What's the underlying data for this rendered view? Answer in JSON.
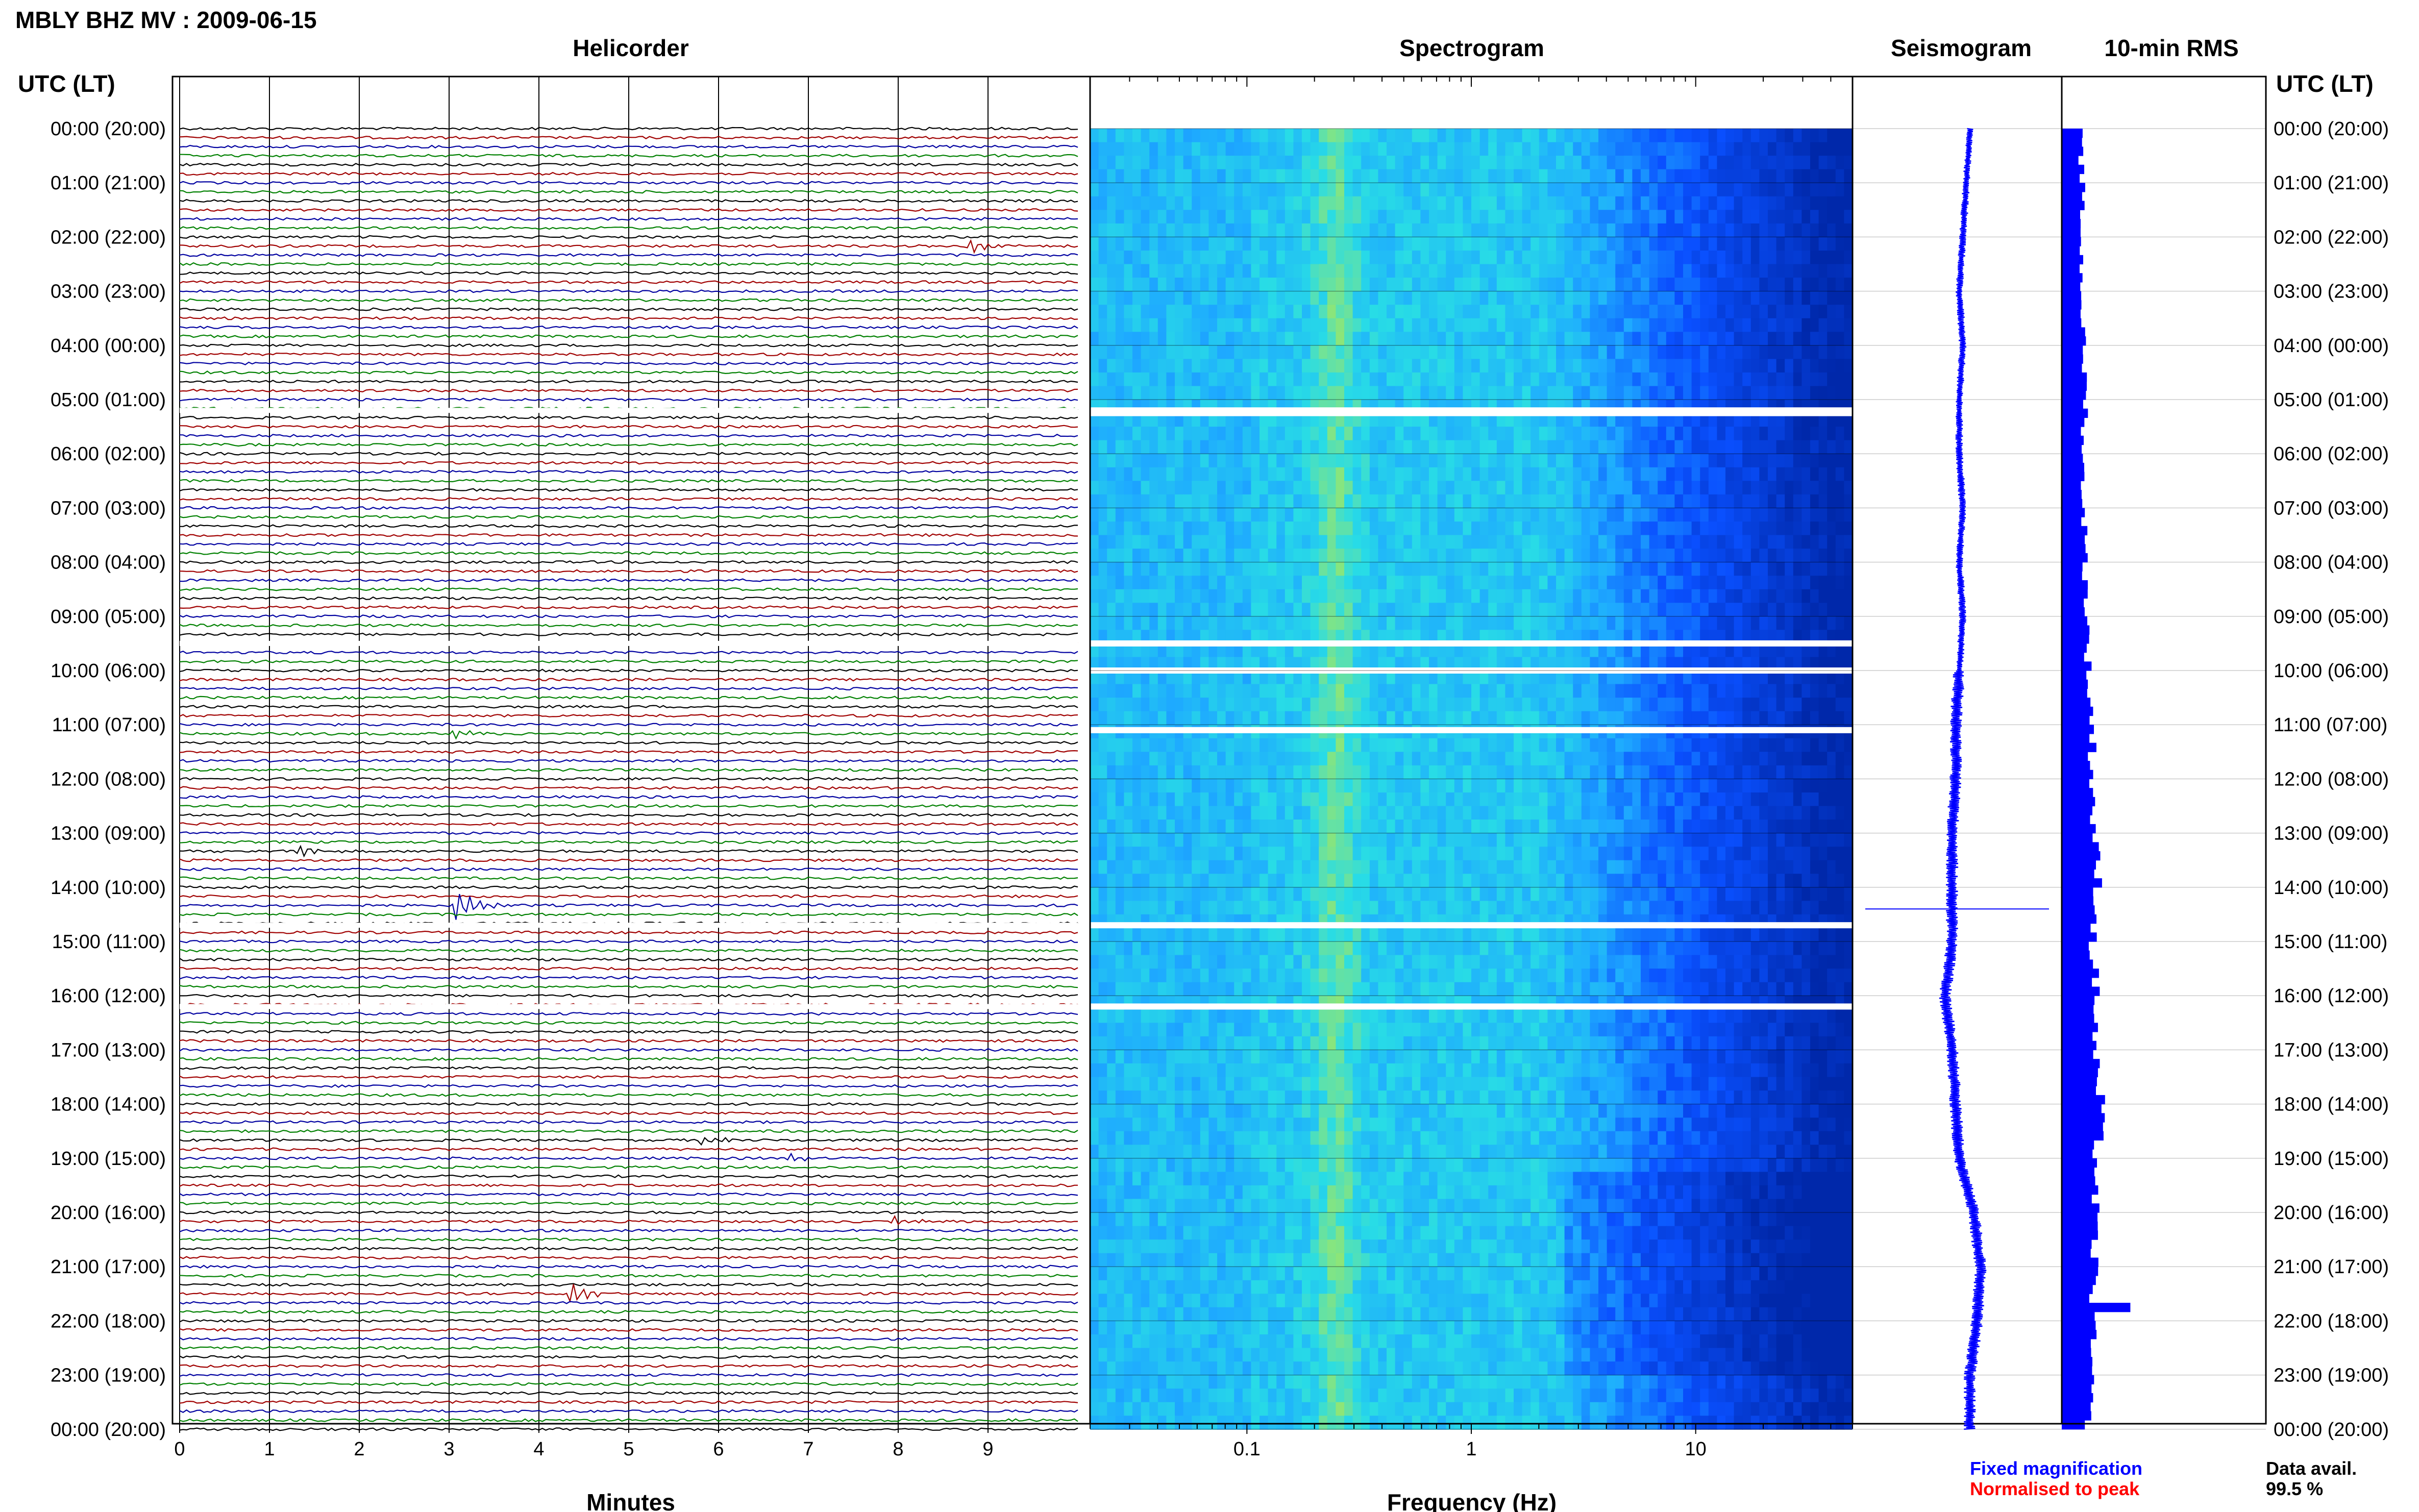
{
  "title": "MBLY BHZ MV : 2009-06-15",
  "panels": {
    "helicorder": "Helicorder",
    "spectrogram": "Spectrogram",
    "seismogram": "Seismogram",
    "rms": "10-min RMS"
  },
  "time_axis_title": "UTC (LT)",
  "time_labels": [
    "00:00 (20:00)",
    "01:00 (21:00)",
    "02:00 (22:00)",
    "03:00 (23:00)",
    "04:00 (00:00)",
    "05:00 (01:00)",
    "06:00 (02:00)",
    "07:00 (03:00)",
    "08:00 (04:00)",
    "09:00 (05:00)",
    "10:00 (06:00)",
    "11:00 (07:00)",
    "12:00 (08:00)",
    "13:00 (09:00)",
    "14:00 (10:00)",
    "15:00 (11:00)",
    "16:00 (12:00)",
    "17:00 (13:00)",
    "18:00 (14:00)",
    "19:00 (15:00)",
    "20:00 (16:00)",
    "21:00 (17:00)",
    "22:00 (18:00)",
    "23:00 (19:00)",
    "00:00 (20:00)"
  ],
  "colors": {
    "trace_cycle": [
      "#000000",
      "#a00000",
      "#0000a0",
      "#008000"
    ],
    "fixed": "#0000ff",
    "normalised": "#ff0000",
    "rms_bar": "#0000ff"
  },
  "chart_data": [
    {
      "type": "line",
      "name": "Helicorder",
      "xlabel": "Minutes",
      "x_ticks": [
        "0",
        "1",
        "2",
        "3",
        "4",
        "5",
        "6",
        "7",
        "8",
        "9"
      ],
      "xlim": [
        0,
        10
      ],
      "lines_per_hour": 6,
      "hours": 24,
      "gaps_hours": [
        5.2,
        9.5,
        14.7,
        16.2
      ],
      "events": [
        {
          "hour": 2.15,
          "minute": 8.85,
          "amp": 1.5
        },
        {
          "hour": 11.1,
          "minute": 3.1,
          "amp": 1.2
        },
        {
          "hour": 13.3,
          "minute": 1.4,
          "amp": 1.3
        },
        {
          "hour": 14.3,
          "minute": 3.15,
          "amp": 3.5
        },
        {
          "hour": 18.6,
          "minute": 5.9,
          "amp": 1.0
        },
        {
          "hour": 18.95,
          "minute": 6.85,
          "amp": 1.0
        },
        {
          "hour": 20.1,
          "minute": 8.0,
          "amp": 1.2
        },
        {
          "hour": 21.55,
          "minute": 4.4,
          "amp": 2.5
        }
      ]
    },
    {
      "type": "heatmap",
      "name": "Spectrogram",
      "xlabel": "Frequency (Hz)",
      "x_ticks": [
        "0.1",
        "1",
        "10"
      ],
      "x_scale": "log",
      "xlim": [
        0.02,
        50
      ],
      "gaps_hours": [
        5.2,
        5.25,
        9.5,
        10.0,
        11.1,
        14.7,
        16.2
      ]
    },
    {
      "type": "line",
      "name": "Seismogram",
      "description_drift": [
        0,
        -0.1,
        -0.2,
        -0.3,
        -0.2,
        -0.3,
        -0.3,
        -0.2,
        -0.3,
        -0.2,
        -0.3,
        -0.4,
        -0.4,
        -0.5,
        -0.5,
        -0.5,
        -0.7,
        -0.5,
        -0.4,
        -0.3,
        0.1,
        0.3,
        0.2,
        0.0,
        0.0
      ]
    },
    {
      "type": "bar",
      "name": "10-min RMS",
      "hourly_rms": [
        0.9,
        1.0,
        0.95,
        1.0,
        1.05,
        1.2,
        1.0,
        1.1,
        1.15,
        1.25,
        1.3,
        1.5,
        1.5,
        1.6,
        1.8,
        1.5,
        1.7,
        1.6,
        1.9,
        1.7,
        1.6,
        1.6,
        1.5,
        1.4,
        1.3
      ],
      "spike_hour": 21.6,
      "spike_value": 2.1
    }
  ],
  "legend": {
    "fixed": "Fixed magnification",
    "normalised": "Normalised to peak"
  },
  "availability": {
    "label": "Data avail.",
    "value": "99.5 %"
  }
}
